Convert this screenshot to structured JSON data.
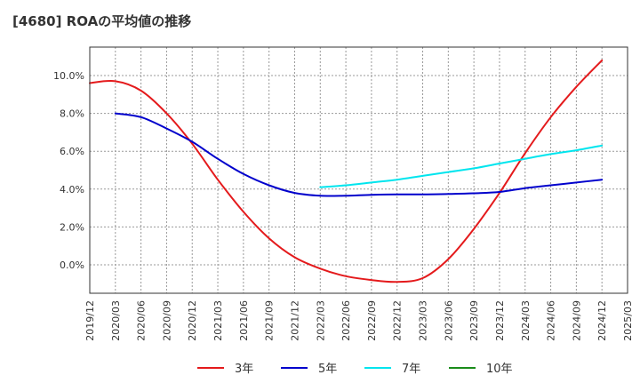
{
  "chart_data": {
    "type": "line",
    "title": "[4680]  ROAの平均値の推移",
    "xlabel": "",
    "ylabel": "",
    "x_ticks": [
      "2019/12",
      "2020/03",
      "2020/06",
      "2020/09",
      "2020/12",
      "2021/03",
      "2021/06",
      "2021/09",
      "2021/12",
      "2022/03",
      "2022/06",
      "2022/09",
      "2022/12",
      "2023/03",
      "2023/06",
      "2023/09",
      "2023/12",
      "2024/03",
      "2024/06",
      "2024/09",
      "2024/12",
      "2025/03"
    ],
    "y_ticks": [
      0.0,
      2.0,
      4.0,
      6.0,
      8.0,
      10.0
    ],
    "y_tick_labels": [
      "0.0%",
      "2.0%",
      "4.0%",
      "6.0%",
      "8.0%",
      "10.0%"
    ],
    "xlim": [
      "2019/12",
      "2025/03"
    ],
    "ylim": [
      -1.5,
      11.5
    ],
    "grid": true,
    "legend_position": "bottom",
    "series": [
      {
        "name": "3年",
        "color": "#e41a1c",
        "x": [
          "2019/12",
          "2020/03",
          "2020/06",
          "2020/09",
          "2020/12",
          "2021/03",
          "2021/06",
          "2021/09",
          "2021/12",
          "2022/03",
          "2022/06",
          "2022/09",
          "2022/12",
          "2023/03",
          "2023/06",
          "2023/09",
          "2023/12",
          "2024/03",
          "2024/06",
          "2024/09",
          "2024/12"
        ],
        "values": [
          9.6,
          9.7,
          9.2,
          8.0,
          6.4,
          4.5,
          2.8,
          1.4,
          0.4,
          -0.2,
          -0.6,
          -0.8,
          -0.9,
          -0.7,
          0.3,
          1.9,
          3.8,
          5.9,
          7.8,
          9.4,
          10.8
        ]
      },
      {
        "name": "5年",
        "color": "#0000cc",
        "x": [
          "2020/03",
          "2020/06",
          "2020/09",
          "2020/12",
          "2021/03",
          "2021/06",
          "2021/09",
          "2021/12",
          "2022/03",
          "2022/06",
          "2022/09",
          "2022/12",
          "2023/03",
          "2023/06",
          "2023/09",
          "2023/12",
          "2024/03",
          "2024/06",
          "2024/09",
          "2024/12"
        ],
        "values": [
          8.0,
          7.8,
          7.2,
          6.5,
          5.6,
          4.8,
          4.2,
          3.8,
          3.65,
          3.65,
          3.7,
          3.72,
          3.72,
          3.74,
          3.78,
          3.85,
          4.05,
          4.2,
          4.35,
          4.5
        ]
      },
      {
        "name": "7年",
        "color": "#00e5ee",
        "x": [
          "2022/03",
          "2022/06",
          "2022/09",
          "2022/12",
          "2023/03",
          "2023/06",
          "2023/09",
          "2023/12",
          "2024/03",
          "2024/06",
          "2024/09",
          "2024/12"
        ],
        "values": [
          4.1,
          4.2,
          4.35,
          4.5,
          4.7,
          4.9,
          5.1,
          5.35,
          5.6,
          5.85,
          6.05,
          6.3
        ]
      },
      {
        "name": "10年",
        "color": "#1a8c1a",
        "x": [],
        "values": []
      }
    ]
  }
}
